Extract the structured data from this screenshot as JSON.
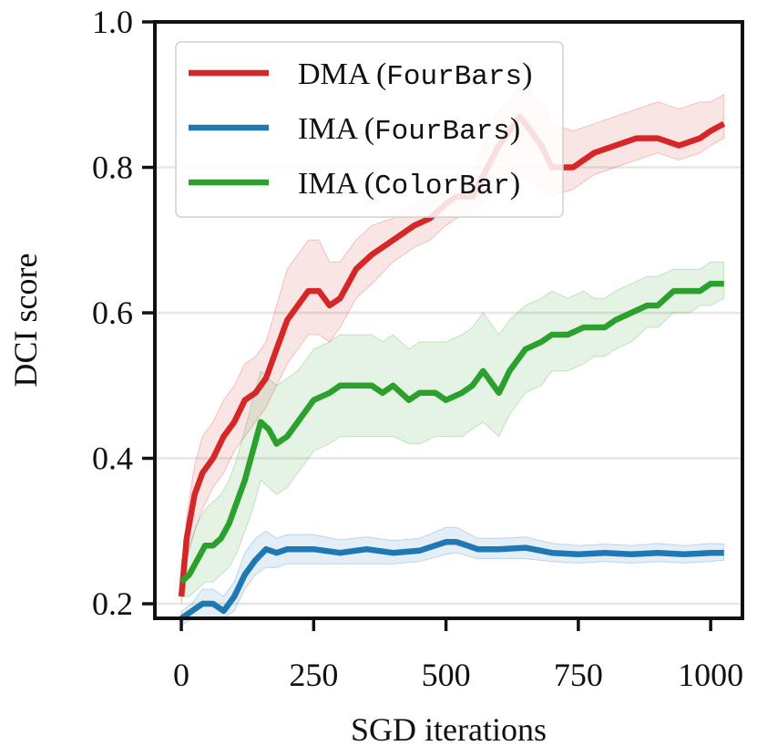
{
  "chart_data": {
    "type": "line",
    "title": "",
    "xlabel": "SGD iterations",
    "ylabel": "DCI score",
    "xlim": [
      -50,
      1060
    ],
    "ylim": [
      0.18,
      1.0
    ],
    "xticks": [
      0,
      250,
      500,
      750,
      1000
    ],
    "xtick_labels": [
      "0",
      "250",
      "500",
      "750",
      "1000"
    ],
    "yticks": [
      0.2,
      0.4,
      0.6,
      0.8,
      1.0
    ],
    "ytick_labels": [
      "0.2",
      "0.4",
      "0.6",
      "0.8",
      "1.0"
    ],
    "grid": "horizontal",
    "legend_position": "top-left",
    "series": [
      {
        "name": "DMA",
        "name_suffix": "FourBars",
        "color": "#d62728",
        "x": [
          0,
          10,
          25,
          40,
          60,
          80,
          100,
          120,
          140,
          160,
          180,
          200,
          220,
          240,
          260,
          280,
          300,
          330,
          360,
          400,
          440,
          470,
          500,
          520,
          550,
          600,
          640,
          680,
          700,
          740,
          780,
          820,
          860,
          900,
          940,
          980,
          1000,
          1025
        ],
        "y": [
          0.21,
          0.29,
          0.35,
          0.38,
          0.4,
          0.43,
          0.45,
          0.48,
          0.49,
          0.51,
          0.55,
          0.59,
          0.61,
          0.63,
          0.63,
          0.61,
          0.62,
          0.66,
          0.68,
          0.7,
          0.72,
          0.73,
          0.75,
          0.76,
          0.76,
          0.83,
          0.87,
          0.83,
          0.8,
          0.8,
          0.82,
          0.83,
          0.84,
          0.84,
          0.83,
          0.84,
          0.85,
          0.86
        ],
        "lower": [
          0.2,
          0.26,
          0.3,
          0.33,
          0.36,
          0.38,
          0.41,
          0.43,
          0.45,
          0.47,
          0.5,
          0.53,
          0.55,
          0.57,
          0.57,
          0.56,
          0.58,
          0.62,
          0.64,
          0.67,
          0.69,
          0.7,
          0.72,
          0.73,
          0.74,
          0.77,
          0.79,
          0.77,
          0.76,
          0.77,
          0.79,
          0.8,
          0.81,
          0.82,
          0.81,
          0.82,
          0.83,
          0.84
        ],
        "upper": [
          0.23,
          0.32,
          0.39,
          0.43,
          0.45,
          0.48,
          0.5,
          0.53,
          0.54,
          0.56,
          0.61,
          0.66,
          0.68,
          0.7,
          0.7,
          0.67,
          0.67,
          0.7,
          0.72,
          0.73,
          0.75,
          0.76,
          0.78,
          0.79,
          0.79,
          0.88,
          0.91,
          0.89,
          0.86,
          0.85,
          0.86,
          0.87,
          0.88,
          0.89,
          0.88,
          0.89,
          0.89,
          0.9
        ]
      },
      {
        "name": "IMA",
        "name_suffix": "FourBars",
        "color": "#1f77b4",
        "x": [
          0,
          20,
          40,
          60,
          80,
          100,
          120,
          140,
          160,
          180,
          200,
          250,
          300,
          350,
          400,
          450,
          500,
          520,
          560,
          600,
          650,
          700,
          750,
          800,
          850,
          900,
          950,
          1000,
          1025
        ],
        "y": [
          0.18,
          0.19,
          0.2,
          0.2,
          0.19,
          0.21,
          0.24,
          0.26,
          0.275,
          0.27,
          0.275,
          0.275,
          0.27,
          0.275,
          0.27,
          0.273,
          0.285,
          0.285,
          0.275,
          0.275,
          0.277,
          0.27,
          0.268,
          0.27,
          0.268,
          0.27,
          0.268,
          0.27,
          0.27
        ],
        "lower": [
          0.17,
          0.18,
          0.18,
          0.18,
          0.18,
          0.19,
          0.22,
          0.24,
          0.25,
          0.25,
          0.255,
          0.255,
          0.255,
          0.255,
          0.255,
          0.258,
          0.268,
          0.27,
          0.262,
          0.262,
          0.262,
          0.258,
          0.256,
          0.258,
          0.256,
          0.258,
          0.256,
          0.258,
          0.26
        ],
        "upper": [
          0.19,
          0.2,
          0.22,
          0.22,
          0.21,
          0.23,
          0.27,
          0.29,
          0.3,
          0.29,
          0.295,
          0.295,
          0.288,
          0.292,
          0.287,
          0.29,
          0.305,
          0.305,
          0.29,
          0.29,
          0.292,
          0.283,
          0.28,
          0.282,
          0.28,
          0.283,
          0.28,
          0.283,
          0.282
        ]
      },
      {
        "name": "IMA",
        "name_suffix": "ColorBar",
        "color": "#2ca02c",
        "x": [
          0,
          15,
          30,
          45,
          60,
          75,
          90,
          105,
          120,
          135,
          150,
          165,
          180,
          200,
          220,
          250,
          280,
          300,
          330,
          360,
          380,
          400,
          430,
          450,
          480,
          500,
          530,
          550,
          570,
          600,
          620,
          650,
          680,
          700,
          730,
          760,
          780,
          800,
          820,
          850,
          880,
          900,
          930,
          960,
          980,
          1000,
          1025
        ],
        "y": [
          0.23,
          0.24,
          0.26,
          0.28,
          0.28,
          0.29,
          0.31,
          0.34,
          0.37,
          0.41,
          0.45,
          0.44,
          0.42,
          0.43,
          0.45,
          0.48,
          0.49,
          0.5,
          0.5,
          0.5,
          0.49,
          0.5,
          0.48,
          0.49,
          0.49,
          0.48,
          0.49,
          0.5,
          0.52,
          0.49,
          0.52,
          0.55,
          0.56,
          0.57,
          0.57,
          0.58,
          0.58,
          0.58,
          0.59,
          0.6,
          0.61,
          0.61,
          0.63,
          0.63,
          0.63,
          0.64,
          0.64
        ],
        "lower": [
          0.21,
          0.21,
          0.22,
          0.23,
          0.23,
          0.24,
          0.25,
          0.27,
          0.3,
          0.33,
          0.37,
          0.36,
          0.35,
          0.36,
          0.38,
          0.41,
          0.42,
          0.43,
          0.43,
          0.43,
          0.43,
          0.43,
          0.42,
          0.42,
          0.43,
          0.43,
          0.43,
          0.44,
          0.45,
          0.43,
          0.46,
          0.49,
          0.5,
          0.52,
          0.52,
          0.53,
          0.54,
          0.54,
          0.55,
          0.56,
          0.58,
          0.58,
          0.6,
          0.6,
          0.61,
          0.61,
          0.62
        ],
        "upper": [
          0.26,
          0.28,
          0.31,
          0.33,
          0.34,
          0.35,
          0.37,
          0.4,
          0.44,
          0.48,
          0.52,
          0.51,
          0.5,
          0.51,
          0.52,
          0.55,
          0.56,
          0.57,
          0.57,
          0.57,
          0.56,
          0.57,
          0.55,
          0.56,
          0.56,
          0.56,
          0.57,
          0.58,
          0.6,
          0.57,
          0.59,
          0.61,
          0.62,
          0.63,
          0.62,
          0.63,
          0.62,
          0.62,
          0.63,
          0.64,
          0.65,
          0.65,
          0.66,
          0.66,
          0.66,
          0.67,
          0.67
        ]
      }
    ]
  }
}
